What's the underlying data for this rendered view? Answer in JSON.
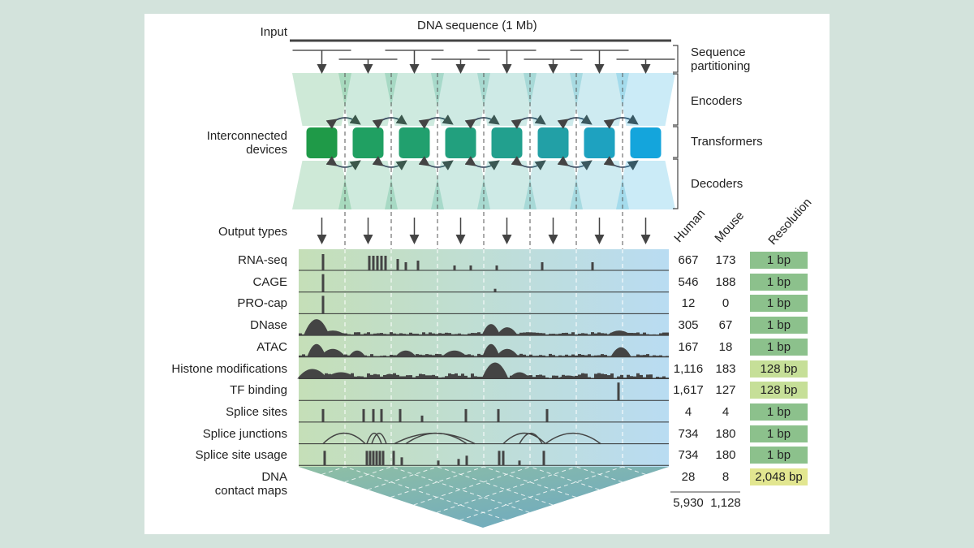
{
  "input_label": "Input",
  "dna_label": "DNA sequence (1 Mb)",
  "left_labels": {
    "devices": [
      "Interconnected",
      "devices"
    ],
    "output_types": "Output types"
  },
  "right_labels": {
    "partitioning": [
      "Sequence",
      "partitioning"
    ],
    "encoders": "Encoders",
    "transformers": "Transformers",
    "decoders": "Decoders"
  },
  "column_headers": {
    "human": "Human",
    "mouse": "Mouse",
    "resolution": "Resolution"
  },
  "device_colors": [
    "#1f9a48",
    "#20a062",
    "#21a06e",
    "#22a07e",
    "#22a08e",
    "#22a0a6",
    "#1ea2c0",
    "#14a5dc"
  ],
  "resolution_colors": {
    "1 bp": "#8cc18c",
    "128 bp": "#c6df98",
    "2,048 bp": "#e2e690"
  },
  "tracks": [
    {
      "name": "RNA-seq",
      "human": "667",
      "mouse": "173",
      "resolution": "1 bp"
    },
    {
      "name": "CAGE",
      "human": "546",
      "mouse": "188",
      "resolution": "1 bp"
    },
    {
      "name": "PRO-cap",
      "human": "12",
      "mouse": "0",
      "resolution": "1 bp"
    },
    {
      "name": "DNase",
      "human": "305",
      "mouse": "67",
      "resolution": "1 bp"
    },
    {
      "name": "ATAC",
      "human": "167",
      "mouse": "18",
      "resolution": "1 bp"
    },
    {
      "name": "Histone modifications",
      "human": "1,116",
      "mouse": "183",
      "resolution": "128 bp"
    },
    {
      "name": "TF binding",
      "human": "1,617",
      "mouse": "127",
      "resolution": "128 bp"
    },
    {
      "name": "Splice sites",
      "human": "4",
      "mouse": "4",
      "resolution": "1 bp"
    },
    {
      "name": "Splice junctions",
      "human": "734",
      "mouse": "180",
      "resolution": "1 bp"
    },
    {
      "name": "Splice site usage",
      "human": "734",
      "mouse": "180",
      "resolution": "1 bp"
    },
    {
      "name": "DNA contact maps",
      "name_lines": [
        "DNA",
        "contact maps"
      ],
      "human": "28",
      "mouse": "8",
      "resolution": "2,048 bp"
    }
  ],
  "totals": {
    "human": "5,930",
    "mouse": "1,128"
  }
}
